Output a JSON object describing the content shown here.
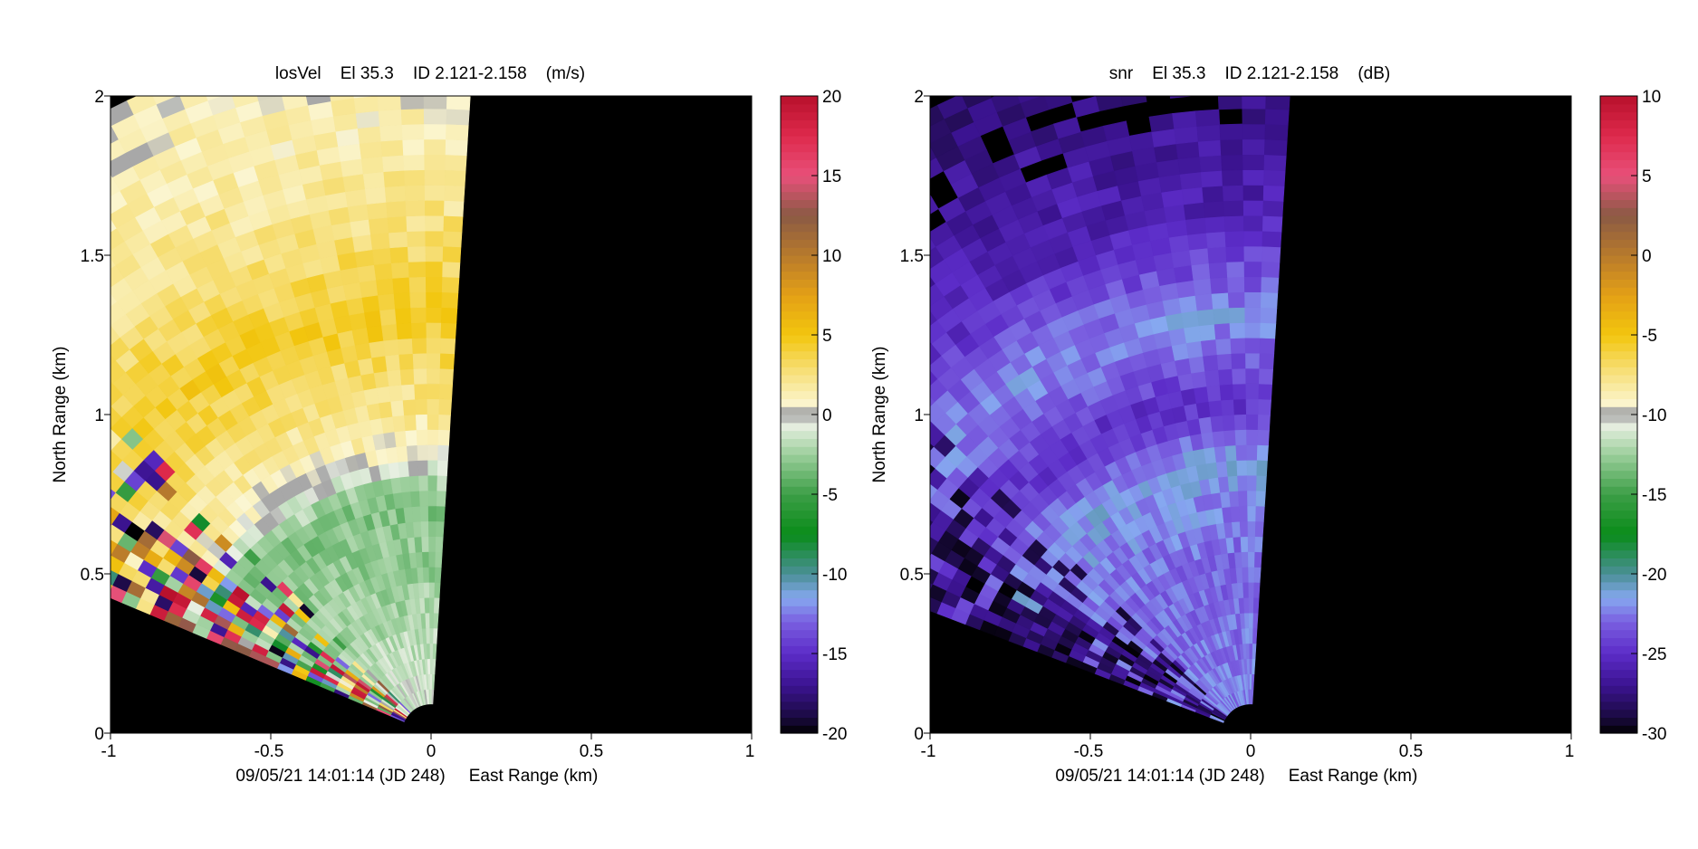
{
  "chart_data": [
    {
      "type": "heatmap",
      "subtype": "radar-sector-ppi",
      "title": "losVel    El 35.3    ID 2.121-2.158    (m/s)",
      "xlabel": "East Range (km)",
      "ylabel": "North Range (km)",
      "footer": "09/05/21 14:01:14 (JD 248)",
      "xlim": [
        -1,
        1
      ],
      "ylim": [
        0,
        2
      ],
      "xticks": [
        -1,
        -0.5,
        0,
        0.5,
        1
      ],
      "xtick_labels": [
        "-1",
        "-0.5",
        "0",
        "0.5",
        "1"
      ],
      "yticks": [
        0,
        0.5,
        1,
        1.5,
        2
      ],
      "ytick_labels": [
        "0",
        "0.5",
        "1",
        "1.5",
        "2"
      ],
      "sector": {
        "azimuth_min_deg": -67,
        "azimuth_max_deg": 3.5,
        "range_min_km": 0.09,
        "range_max_km": 2.2
      },
      "colorbar": {
        "min": -20,
        "max": 20,
        "ticks": [
          -20,
          -15,
          -10,
          -5,
          0,
          5,
          10,
          15,
          20
        ],
        "tick_labels": [
          "-20",
          "-15",
          "-10",
          "-5",
          "0",
          "5",
          "10",
          "15",
          "20"
        ],
        "stops": [
          [
            -20,
            "#000000"
          ],
          [
            -19,
            "#1a0a40"
          ],
          [
            -17,
            "#3b1390"
          ],
          [
            -15,
            "#5c2cc8"
          ],
          [
            -13,
            "#7a5fe0"
          ],
          [
            -11.5,
            "#86a8f0"
          ],
          [
            -10,
            "#4a8f96"
          ],
          [
            -7.5,
            "#0a8c1a"
          ],
          [
            -5,
            "#3c9e46"
          ],
          [
            -2.5,
            "#9ccf9c"
          ],
          [
            -0.6,
            "#eaf0e4"
          ],
          [
            -0.1,
            "#a8a8a8"
          ],
          [
            0.2,
            "#a8a8a8"
          ],
          [
            0.6,
            "#fbf6d2"
          ],
          [
            3,
            "#f6dc6c"
          ],
          [
            5,
            "#f2c60e"
          ],
          [
            7.5,
            "#e3a016"
          ],
          [
            10,
            "#b87a2c"
          ],
          [
            12.5,
            "#8a5a44"
          ],
          [
            15,
            "#e8507a"
          ],
          [
            17.5,
            "#de2a4c"
          ],
          [
            20,
            "#b8102c"
          ]
        ]
      },
      "value_profile": [
        {
          "r_km": 0.0,
          "value": -0.5
        },
        {
          "r_km": 0.45,
          "value": -2.5
        },
        {
          "r_km": 0.75,
          "value": -3.2
        },
        {
          "r_km": 0.9,
          "value": 1.0
        },
        {
          "r_km": 1.3,
          "value": 4.5
        },
        {
          "r_km": 1.7,
          "value": 2.0
        },
        {
          "r_km": 2.2,
          "value": 0.5
        }
      ],
      "noisy_region": {
        "near_edge_azimuth_deg": 14,
        "near_edge_value": [
          -20,
          20
        ]
      }
    },
    {
      "type": "heatmap",
      "subtype": "radar-sector-ppi",
      "title": "snr    El 35.3    ID 2.121-2.158    (dB)",
      "xlabel": "East Range (km)",
      "ylabel": "North Range (km)",
      "footer": "09/05/21 14:01:14 (JD 248)",
      "xlim": [
        -1,
        1
      ],
      "ylim": [
        0,
        2
      ],
      "xticks": [
        -1,
        -0.5,
        0,
        0.5,
        1
      ],
      "xtick_labels": [
        "-1",
        "-0.5",
        "0",
        "0.5",
        "1"
      ],
      "yticks": [
        0,
        0.5,
        1,
        1.5,
        2
      ],
      "ytick_labels": [
        "0",
        "0.5",
        "1",
        "1.5",
        "2"
      ],
      "sector": {
        "azimuth_min_deg": -69,
        "azimuth_max_deg": 3.5,
        "range_min_km": 0.09,
        "range_max_km": 2.2
      },
      "colorbar": {
        "min": -30,
        "max": 10,
        "ticks": [
          -30,
          -25,
          -20,
          -15,
          -10,
          -5,
          0,
          5,
          10
        ],
        "tick_labels": [
          "-30",
          "-25",
          "-20",
          "-15",
          "-10",
          "-5",
          "0",
          "5",
          "10"
        ],
        "stops": [
          [
            -30,
            "#000000"
          ],
          [
            -29,
            "#1a0a40"
          ],
          [
            -27,
            "#3b1390"
          ],
          [
            -25,
            "#5c2cc8"
          ],
          [
            -23,
            "#7a5fe0"
          ],
          [
            -21.5,
            "#86a8f0"
          ],
          [
            -20,
            "#4a8f96"
          ],
          [
            -17.5,
            "#0a8c1a"
          ],
          [
            -15,
            "#3c9e46"
          ],
          [
            -12.5,
            "#9ccf9c"
          ],
          [
            -10.6,
            "#eaf0e4"
          ],
          [
            -10.1,
            "#a8a8a8"
          ],
          [
            -9.8,
            "#a8a8a8"
          ],
          [
            -9.4,
            "#fbf6d2"
          ],
          [
            -7,
            "#f6dc6c"
          ],
          [
            -5,
            "#f2c60e"
          ],
          [
            -2.5,
            "#e3a016"
          ],
          [
            0,
            "#b87a2c"
          ],
          [
            2.5,
            "#8a5a44"
          ],
          [
            5,
            "#e8507a"
          ],
          [
            7.5,
            "#de2a4c"
          ],
          [
            10,
            "#b8102c"
          ]
        ]
      },
      "value_profile": [
        {
          "r_km": 0.0,
          "value": -22.0
        },
        {
          "r_km": 0.5,
          "value": -23.0
        },
        {
          "r_km": 0.85,
          "value": -21.5
        },
        {
          "r_km": 1.05,
          "value": -25.0
        },
        {
          "r_km": 1.3,
          "value": -21.8
        },
        {
          "r_km": 1.6,
          "value": -25.5
        },
        {
          "r_km": 2.2,
          "value": -28.0
        }
      ],
      "noisy_region": {
        "near_edge_azimuth_deg": 14,
        "near_edge_value": [
          -30,
          -26
        ]
      }
    }
  ]
}
